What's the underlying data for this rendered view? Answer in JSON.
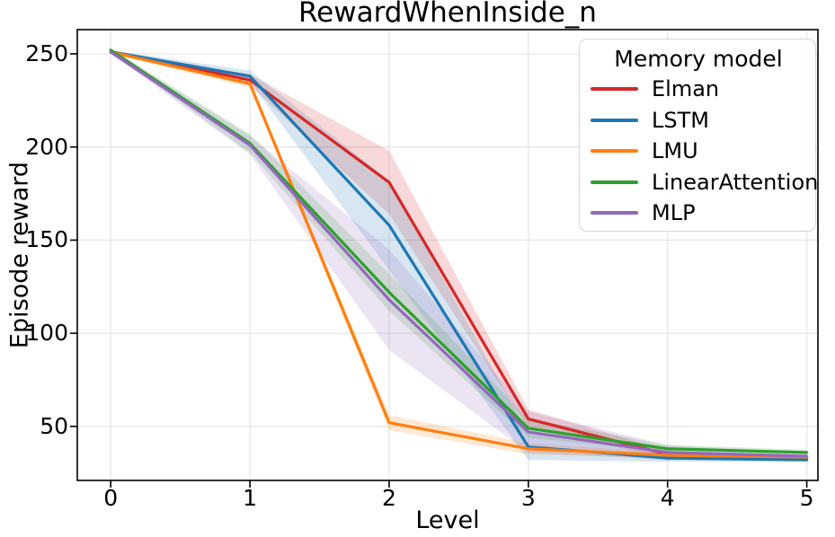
{
  "figure": {
    "background": "#ffffff"
  },
  "chart_data": {
    "type": "line",
    "title": "RewardWhenInside_n",
    "xlabel": "Level",
    "ylabel": "Episode reward",
    "x": [
      0,
      1,
      2,
      3,
      4,
      5
    ],
    "xticks": [
      "0",
      "1",
      "2",
      "3",
      "4",
      "5"
    ],
    "yticks": [
      "50",
      "100",
      "150",
      "200",
      "250"
    ],
    "ytick_values": [
      50,
      100,
      150,
      200,
      250
    ],
    "xtick_values": [
      0,
      1,
      2,
      3,
      4,
      5
    ],
    "xlim": [
      -0.24,
      5.08
    ],
    "ylim": [
      21,
      263
    ],
    "grid": true,
    "gridline_color": "#e6e6e6",
    "spine_color": "#000000",
    "tick_color": "#000000",
    "band_opacity": 0.18,
    "legend": {
      "title": "Memory model",
      "position": "upper right"
    },
    "series": [
      {
        "name": "Elman",
        "color": "#d62728",
        "values": [
          251,
          236,
          181,
          54,
          35,
          33
        ],
        "band_halfwidth": [
          1,
          3,
          17,
          5,
          2,
          1
        ]
      },
      {
        "name": "LSTM",
        "color": "#1f77b4",
        "values": [
          251,
          238,
          158,
          39,
          33,
          32
        ],
        "band_halfwidth": [
          1,
          3,
          24,
          7,
          2,
          1
        ]
      },
      {
        "name": "LMU",
        "color": "#ff7f0e",
        "values": [
          251,
          234,
          52,
          38,
          34.5,
          33.5
        ],
        "band_halfwidth": [
          1,
          2,
          4,
          3,
          1.5,
          1
        ]
      },
      {
        "name": "LinearAttention",
        "color": "#2ca02c",
        "values": [
          252,
          202,
          122,
          49,
          38,
          36
        ],
        "band_halfwidth": [
          1,
          5,
          10,
          5,
          2,
          1.5
        ]
      },
      {
        "name": "MLP",
        "color": "#9467bd",
        "values": [
          251,
          201,
          118,
          47,
          36,
          34
        ],
        "band_halfwidth": [
          1,
          5,
          27,
          11,
          4,
          2
        ]
      }
    ]
  }
}
